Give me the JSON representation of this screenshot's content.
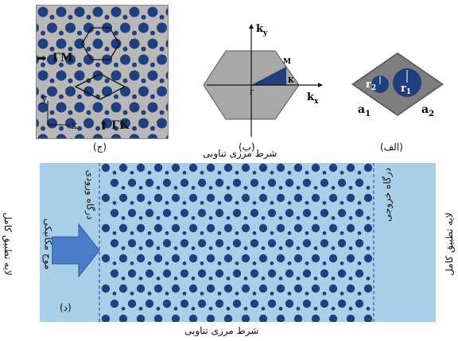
{
  "panel_c": {
    "caption": "(ج)",
    "label_gamma_m": "ΓM",
    "label_gamma_k": "ΓK",
    "axis_y": "y",
    "axis_x": "x"
  },
  "panel_b": {
    "caption": "(ب)",
    "axis_ky": "k",
    "axis_ky_sub": "y",
    "axis_kx": "k",
    "axis_kx_sub": "x",
    "point_m": "M",
    "point_k": "K",
    "point_gamma": "Γ"
  },
  "panel_a": {
    "caption": "(الف)",
    "r2": "r",
    "r2_sub": "2",
    "r1": "r",
    "r1_sub": "1",
    "a1": "a",
    "a1_sub": "1",
    "a2": "a",
    "a2_sub": "2"
  },
  "panel_d": {
    "caption": "(د)",
    "top_boundary": "شرط مرزی تناوبی",
    "bottom_boundary": "شرط مرزی تناوبی",
    "left_pml": "لایه تطبیق کامل",
    "right_pml": "لایه تطبیق کامل",
    "input_port": "درگاه ورودی",
    "output_port": "درگاه خروجی",
    "wave": "موج مکانیکی"
  },
  "colors": {
    "inclusion": "#1f3f7f",
    "matrix": "#b8b8b8",
    "domain": "#a9cfe8",
    "arrow": "#4a7cc9"
  }
}
